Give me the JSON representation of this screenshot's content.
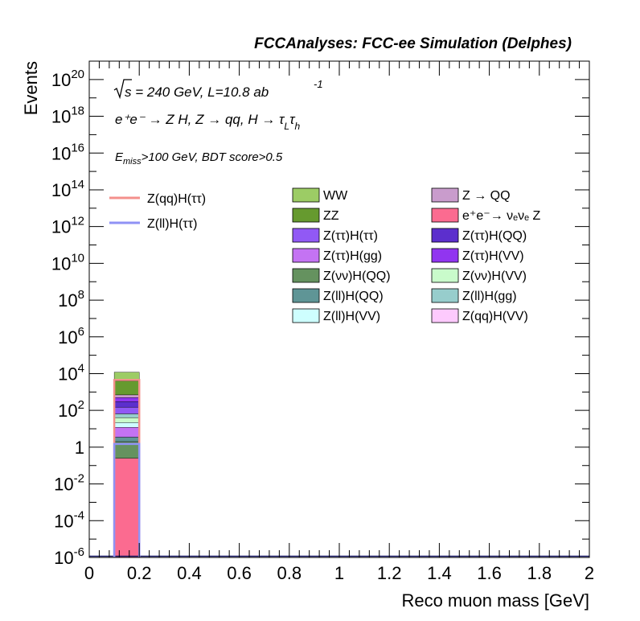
{
  "header": {
    "title": "FCCAnalyses: FCC-ee Simulation (Delphes)"
  },
  "annotations": {
    "sqrt_s": "s",
    "energy_lumi": " = 240 GeV, L=10.8 ab",
    "lumi_exp": "-1",
    "process": "e⁺e⁻ → Z H, Z → qq, H → τ",
    "tau_sub1": "L",
    "tau_mid": "τ",
    "tau_sub2": "h",
    "cut_E": "E",
    "cut_sub": "miss",
    "cut_rest": ">100 GeV, BDT score>0.5"
  },
  "colors": {
    "signal_qq": "#f4908c",
    "signal_ll": "#8f92f5",
    "axis": "#000000"
  },
  "chart_data": {
    "type": "bar",
    "title": "FCCAnalyses: FCC-ee Simulation (Delphes)",
    "xlabel": "Reco muon mass [GeV]",
    "ylabel": "Events",
    "xlim": [
      0,
      2
    ],
    "ylim": [
      1e-06,
      1e+21
    ],
    "log_y": true,
    "x_ticks": [
      "0",
      "0.2",
      "0.4",
      "0.6",
      "0.8",
      "1",
      "1.2",
      "1.4",
      "1.6",
      "1.8",
      "2"
    ],
    "x_tick_values": [
      0,
      0.2,
      0.4,
      0.6,
      0.8,
      1.0,
      1.2,
      1.4,
      1.6,
      1.8,
      2.0
    ],
    "y_ticks": [
      {
        "exp": -6,
        "base": "10",
        "sup": "-6"
      },
      {
        "exp": -4,
        "base": "10",
        "sup": "-4"
      },
      {
        "exp": -2,
        "base": "10",
        "sup": "-2"
      },
      {
        "exp": 0,
        "base": "1",
        "sup": ""
      },
      {
        "exp": 2,
        "base": "10",
        "sup": "2"
      },
      {
        "exp": 4,
        "base": "10",
        "sup": "4"
      },
      {
        "exp": 6,
        "base": "10",
        "sup": "6"
      },
      {
        "exp": 8,
        "base": "10",
        "sup": "8"
      },
      {
        "exp": 10,
        "base": "10",
        "sup": "10"
      },
      {
        "exp": 12,
        "base": "10",
        "sup": "12"
      },
      {
        "exp": 14,
        "base": "10",
        "sup": "14"
      },
      {
        "exp": 16,
        "base": "10",
        "sup": "16"
      },
      {
        "exp": 18,
        "base": "10",
        "sup": "18"
      },
      {
        "exp": 20,
        "base": "10",
        "sup": "20"
      }
    ],
    "grid": false,
    "bin": {
      "low": 0.1,
      "high": 0.2
    },
    "stack": [
      {
        "name": "e⁺e⁻→ νₑνₑ Z",
        "color": "#fb6b90",
        "bottom": 1e-06,
        "top": 0.25
      },
      {
        "name": "Z(νν)H(QQ)",
        "color": "#65925f",
        "bottom": 0.25,
        "top": 2.0
      },
      {
        "name": "Z(ll)H(QQ)",
        "color": "#5f9596",
        "bottom": 2.0,
        "top": 3.5
      },
      {
        "name": "Z(ττ)H(gg)",
        "color": "#c473f3",
        "bottom": 3.5,
        "top": 12
      },
      {
        "name": "Z(ll)H(VV)",
        "color": "#cefefe",
        "bottom": 12,
        "top": 22
      },
      {
        "name": "Z(νν)H(VV)",
        "color": "#c9fbcb",
        "bottom": 22,
        "top": 40
      },
      {
        "name": "Z(ll)H(gg)",
        "color": "#97cdcc",
        "bottom": 40,
        "top": 65
      },
      {
        "name": "Z(ττ)H(ττ)",
        "color": "#9159f5",
        "bottom": 65,
        "top": 150
      },
      {
        "name": "Z(ττ)H(QQ)",
        "color": "#5c2fcd",
        "bottom": 150,
        "top": 300
      },
      {
        "name": "Z(ττ)H(VV)",
        "color": "#9135f0",
        "bottom": 300,
        "top": 500
      },
      {
        "name": "Z → QQ",
        "color": "#c99ccc",
        "bottom": 500,
        "top": 700
      },
      {
        "name": "ZZ",
        "color": "#669a2f",
        "bottom": 700,
        "top": 4000
      },
      {
        "name": "WW",
        "color": "#9ccc65",
        "bottom": 4000,
        "top": 12000
      }
    ],
    "signals": [
      {
        "name": "Z(qq)H(ττ)",
        "color": "#f4908c",
        "value": 4500
      },
      {
        "name": "Z(ll)H(ττ)",
        "color": "#8f92f5",
        "value": 1.5
      }
    ],
    "legend_left": [
      {
        "name": "Z(qq)H(ττ)",
        "color": "#f4908c"
      },
      {
        "name": "Z(ll)H(ττ)",
        "color": "#8f92f5"
      }
    ],
    "legend_col1": [
      {
        "name": "WW",
        "color": "#9ccc65"
      },
      {
        "name": "ZZ",
        "color": "#669a2f"
      },
      {
        "name": "Z(ττ)H(ττ)",
        "color": "#9159f5"
      },
      {
        "name": "Z(ττ)H(gg)",
        "color": "#c473f3"
      },
      {
        "name": "Z(νν)H(QQ)",
        "color": "#65925f"
      },
      {
        "name": "Z(ll)H(QQ)",
        "color": "#5f9596"
      },
      {
        "name": "Z(ll)H(VV)",
        "color": "#cefefe"
      }
    ],
    "legend_col2": [
      {
        "name": "Z → QQ",
        "color": "#c99ccc"
      },
      {
        "name": "e⁺e⁻→ νₑνₑ Z",
        "color": "#fb6b90"
      },
      {
        "name": "Z(ττ)H(QQ)",
        "color": "#5c2fcd"
      },
      {
        "name": "Z(ττ)H(VV)",
        "color": "#9135f0"
      },
      {
        "name": "Z(νν)H(VV)",
        "color": "#c9fbcb"
      },
      {
        "name": "Z(ll)H(gg)",
        "color": "#97cdcc"
      },
      {
        "name": "Z(qq)H(VV)",
        "color": "#fdcafd"
      }
    ]
  }
}
